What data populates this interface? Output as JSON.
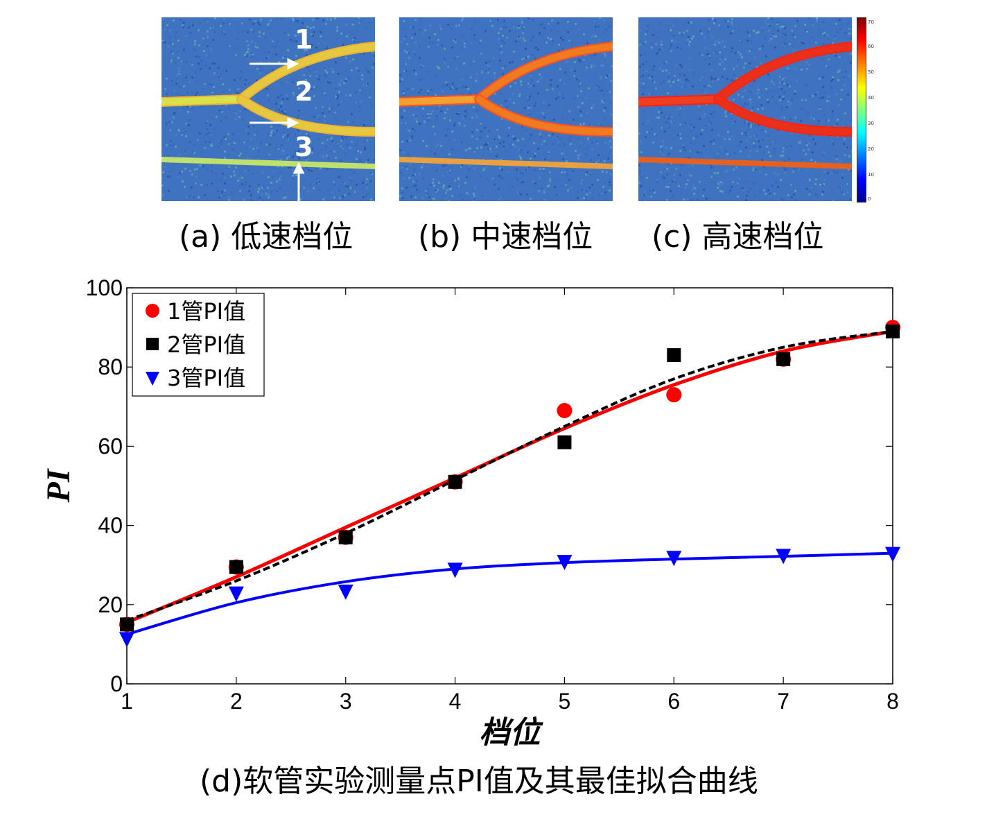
{
  "panels": [
    {
      "caption": "(a) 低速档位",
      "level": "low"
    },
    {
      "caption": "(b) 中速档位",
      "level": "medium"
    },
    {
      "caption": "(c) 高速档位",
      "level": "high"
    }
  ],
  "panel_a_labels": [
    "1",
    "2",
    "3"
  ],
  "colorbar_ticks": [
    "70",
    "60",
    "50",
    "40",
    "30",
    "20",
    "10",
    "0"
  ],
  "bottom_caption": "(d)软管实验测量点PI值及其最佳拟合曲线",
  "colors": {
    "series1": "#ff0000",
    "series2": "#000000",
    "series3": "#0000ff"
  },
  "chart_data": {
    "type": "scatter",
    "xlabel": "档位",
    "ylabel": "PI",
    "xlim": [
      1,
      8
    ],
    "ylim": [
      0,
      100
    ],
    "xticks": [
      1,
      2,
      3,
      4,
      5,
      6,
      7,
      8
    ],
    "yticks": [
      0,
      20,
      40,
      60,
      80,
      100
    ],
    "legend_position": "top-left",
    "series": [
      {
        "name": "1管PI值",
        "marker": "circle",
        "color": "#ff0000",
        "x": [
          1,
          2,
          3,
          4,
          5,
          6,
          7,
          8
        ],
        "y": [
          15,
          29.5,
          37,
          51,
          69,
          73,
          82,
          90
        ],
        "fit": {
          "style": "solid-dotted",
          "y": [
            15.5,
            27,
            39.5,
            52,
            64.5,
            75.5,
            84,
            89
          ]
        }
      },
      {
        "name": "2管PI值",
        "marker": "square",
        "color": "#000000",
        "x": [
          1,
          2,
          3,
          4,
          5,
          6,
          7,
          8
        ],
        "y": [
          15,
          29.5,
          37,
          51,
          61,
          83,
          82,
          89
        ],
        "fit": {
          "style": "dashed",
          "y": [
            16,
            26,
            38,
            51.5,
            65,
            77,
            85,
            89
          ]
        }
      },
      {
        "name": "3管PI值",
        "marker": "triangle-down",
        "color": "#0000ff",
        "x": [
          1,
          2,
          3,
          4,
          5,
          6,
          7,
          8
        ],
        "y": [
          11.5,
          23,
          23.5,
          29,
          31,
          32,
          32.5,
          33
        ],
        "fit": {
          "style": "solid",
          "y": [
            12.5,
            20.5,
            25.8,
            29,
            30.6,
            31.5,
            32.2,
            33
          ]
        }
      }
    ]
  }
}
